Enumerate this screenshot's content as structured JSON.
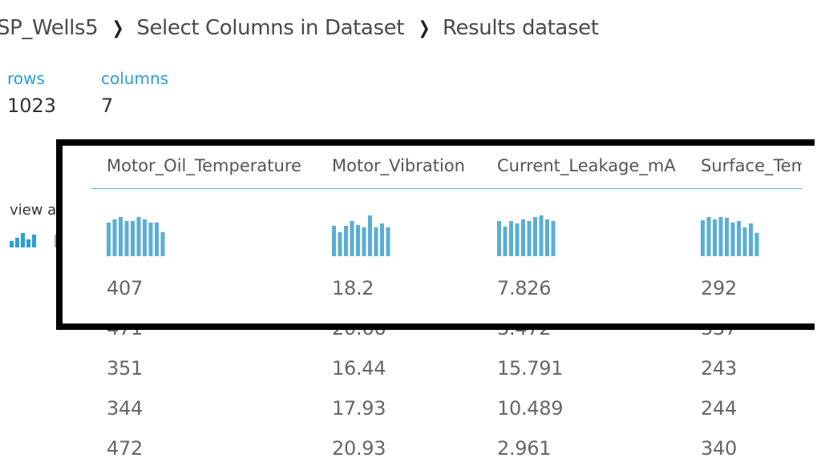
{
  "breadcrumb": [
    "SP_Wells5",
    "Select Columns in Dataset",
    "Results dataset"
  ],
  "stats": {
    "rows_label": "rows",
    "rows_value": "1023",
    "columns_label": "columns",
    "columns_value": "7"
  },
  "view_as": {
    "label": "view a",
    "icon": "histogram-icon"
  },
  "columns": [
    "Motor_Oil_Temperature",
    "Motor_Vibration",
    "Current_Leakage_mA",
    "Surface_Temperature"
  ],
  "histograms": [
    [
      0.72,
      0.8,
      0.84,
      0.76,
      0.75,
      0.84,
      0.8,
      0.73,
      0.73,
      0.52
    ],
    [
      0.66,
      0.52,
      0.66,
      0.75,
      0.68,
      0.62,
      0.88,
      0.62,
      0.7,
      0.62
    ],
    [
      0.76,
      0.64,
      0.76,
      0.7,
      0.8,
      0.76,
      0.84,
      0.88,
      0.8,
      0.76
    ],
    [
      0.78,
      0.84,
      0.8,
      0.84,
      0.82,
      0.72,
      0.76,
      0.62,
      0.7,
      0.5
    ]
  ],
  "rows": [
    [
      "407",
      "18.2",
      "7.826",
      "292"
    ],
    [
      "471",
      "20.66",
      "3.472",
      "337"
    ],
    [
      "351",
      "16.44",
      "15.791",
      "243"
    ],
    [
      "344",
      "17.93",
      "10.489",
      "244"
    ],
    [
      "472",
      "20.93",
      "2.961",
      "340"
    ]
  ],
  "colors": {
    "accent": "#2a9fd6",
    "bar": "#5aaed6",
    "overlay_border": "#000000"
  }
}
